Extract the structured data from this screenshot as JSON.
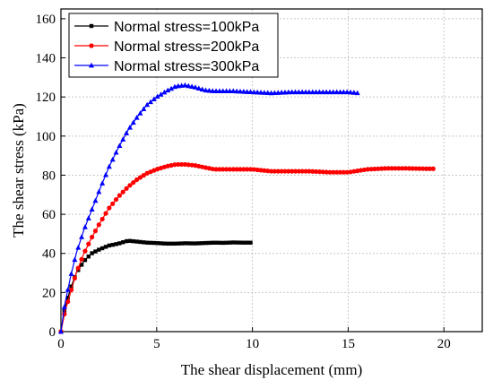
{
  "chart_data": {
    "type": "line",
    "xlabel": "The shear displacement (mm)",
    "ylabel": "The shear stress (kPa)",
    "xlim": [
      0,
      22
    ],
    "ylim": [
      0,
      165
    ],
    "xticks": [
      0,
      5,
      10,
      15,
      20
    ],
    "yticks": [
      0,
      20,
      40,
      60,
      80,
      100,
      120,
      140,
      160
    ],
    "grid": true,
    "legend_position": "top-left",
    "series": [
      {
        "name": "Normal stress=100kPa",
        "color": "#000000",
        "marker": "square",
        "x": [
          0,
          0.2,
          0.5,
          0.8,
          1.2,
          1.6,
          2.0,
          2.5,
          3.0,
          3.5,
          4.0,
          4.5,
          5.0,
          5.5,
          6.0,
          6.5,
          7.0,
          7.5,
          8.0,
          8.5,
          9.0,
          9.5,
          9.9
        ],
        "y": [
          0,
          12,
          22,
          30,
          36,
          40,
          42,
          44,
          45,
          46.5,
          46,
          45.5,
          45.3,
          45,
          45,
          45.2,
          45.1,
          45.3,
          45.5,
          45.4,
          45.6,
          45.5,
          45.5
        ]
      },
      {
        "name": "Normal stress=200kPa",
        "color": "#ff0000",
        "marker": "circle",
        "x": [
          0,
          0.2,
          0.5,
          0.8,
          1.2,
          1.6,
          2.0,
          2.5,
          3.0,
          3.5,
          4.0,
          4.5,
          5.0,
          5.5,
          6.0,
          6.5,
          7.0,
          7.5,
          8.0,
          9.0,
          10.0,
          11.0,
          12.0,
          13.0,
          14.0,
          15.0,
          16.0,
          17.0,
          18.0,
          19.0,
          19.5
        ],
        "y": [
          0,
          10,
          20,
          30,
          40,
          48,
          55,
          63,
          69,
          74,
          78,
          81,
          83,
          84.5,
          85.5,
          85.5,
          85,
          84,
          83,
          83,
          83,
          82,
          82,
          82,
          81.5,
          81.5,
          83,
          83.5,
          83.5,
          83.3,
          83.3
        ]
      },
      {
        "name": "Normal stress=300kPa",
        "color": "#0000ff",
        "marker": "triangle",
        "x": [
          0,
          0.2,
          0.5,
          0.8,
          1.2,
          1.6,
          2.0,
          2.5,
          3.0,
          3.5,
          4.0,
          4.5,
          5.0,
          5.5,
          6.0,
          6.5,
          7.0,
          7.5,
          8.0,
          9.0,
          10.0,
          11.0,
          12.0,
          13.0,
          14.0,
          15.0,
          15.5
        ],
        "y": [
          0,
          14,
          28,
          40,
          52,
          62,
          72,
          84,
          94,
          103,
          110,
          116,
          120,
          123,
          125.5,
          126,
          125,
          123.5,
          123,
          123,
          122.5,
          122,
          122.5,
          122.5,
          122.5,
          122.5,
          122
        ]
      }
    ]
  }
}
